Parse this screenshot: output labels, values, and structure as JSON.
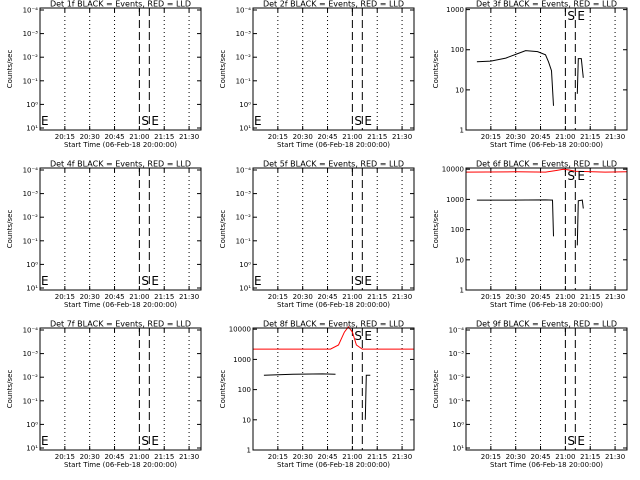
{
  "figure": {
    "start_time_label": "Start Time (06-Feb-18 20:00:00)",
    "ylabel": "Counts/sec"
  },
  "colors": {
    "events": "#000000",
    "lld": "#ff0000"
  },
  "chart_data": [
    {
      "type": "line",
      "title": "Det 1f BLACK = Events, RED = LLD",
      "scale": "log",
      "yticks": [
        "10⁻⁴",
        "10⁻³",
        "10⁻²",
        "10⁻¹",
        "10⁰",
        "10¹"
      ],
      "xticks": [
        "20:15",
        "20:30",
        "20:45",
        "21:00",
        "21:15",
        "21:30"
      ],
      "markers": [
        {
          "label": "E",
          "time": 20.02
        },
        {
          "label": "S",
          "time": 21.0
        },
        {
          "label": "E",
          "time": 21.1
        }
      ],
      "series": []
    },
    {
      "type": "line",
      "title": "Det 2f BLACK = Events, RED = LLD",
      "scale": "log",
      "yticks": [
        "10⁻⁴",
        "10⁻³",
        "10⁻²",
        "10⁻¹",
        "10⁰",
        "10¹"
      ],
      "xticks": [
        "20:15",
        "20:30",
        "20:45",
        "21:00",
        "21:15",
        "21:30"
      ],
      "markers": [
        {
          "label": "E",
          "time": 20.02
        },
        {
          "label": "S",
          "time": 21.0
        },
        {
          "label": "E",
          "time": 21.1
        }
      ],
      "series": []
    },
    {
      "type": "line",
      "title": "Det 3f BLACK = Events, RED = LLD",
      "scale": "log",
      "yticks": [
        "1000",
        "100",
        "10",
        "1"
      ],
      "xticks": [
        "20:15",
        "20:30",
        "20:45",
        "21:00",
        "21:15",
        "21:30"
      ],
      "markers": [
        {
          "label": "S",
          "time": 21.0
        },
        {
          "label": "E",
          "time": 21.1
        }
      ],
      "series": [
        {
          "color": "events",
          "segments": [
            [
              [
                20.11,
                50
              ],
              [
                20.25,
                52
              ],
              [
                20.4,
                62
              ],
              [
                20.52,
                80
              ],
              [
                20.6,
                95
              ],
              [
                20.72,
                90
              ],
              [
                20.8,
                75
              ],
              [
                20.83,
                50
              ],
              [
                20.86,
                30
              ],
              [
                20.88,
                4
              ]
            ],
            [
              [
                21.12,
                8
              ],
              [
                21.13,
                60
              ],
              [
                21.15,
                60
              ],
              [
                21.16,
                60
              ],
              [
                21.18,
                20
              ]
            ]
          ]
        }
      ]
    },
    {
      "type": "line",
      "title": "Det 4f BLACK = Events, RED = LLD",
      "scale": "log",
      "yticks": [
        "10⁻⁴",
        "10⁻³",
        "10⁻²",
        "10⁻¹",
        "10⁰",
        "10¹"
      ],
      "xticks": [
        "20:15",
        "20:30",
        "20:45",
        "21:00",
        "21:15",
        "21:30"
      ],
      "markers": [
        {
          "label": "E",
          "time": 20.02
        },
        {
          "label": "S",
          "time": 21.0
        },
        {
          "label": "E",
          "time": 21.1
        }
      ],
      "series": []
    },
    {
      "type": "line",
      "title": "Det 5f BLACK = Events, RED = LLD",
      "scale": "log",
      "yticks": [
        "10⁻⁴",
        "10⁻³",
        "10⁻²",
        "10⁻¹",
        "10⁰",
        "10¹"
      ],
      "xticks": [
        "20:15",
        "20:30",
        "20:45",
        "21:00",
        "21:15",
        "21:30"
      ],
      "markers": [
        {
          "label": "E",
          "time": 20.02
        },
        {
          "label": "S",
          "time": 21.0
        },
        {
          "label": "E",
          "time": 21.1
        }
      ],
      "series": []
    },
    {
      "type": "line",
      "title": "Det 6f BLACK = Events, RED = LLD",
      "scale": "log",
      "yticks": [
        "10000",
        "1000",
        "100",
        "10",
        "1"
      ],
      "xticks": [
        "20:15",
        "20:30",
        "20:45",
        "21:00",
        "21:15",
        "21:30"
      ],
      "markers": [
        {
          "label": "S",
          "time": 21.0
        },
        {
          "label": "E",
          "time": 21.1
        }
      ],
      "series": [
        {
          "color": "lld",
          "segments": [
            [
              [
                20.0,
                8000
              ],
              [
                20.5,
                8200
              ],
              [
                20.8,
                8000
              ],
              [
                20.9,
                9000
              ],
              [
                20.98,
                10000
              ],
              [
                21.03,
                9500
              ],
              [
                21.1,
                8500
              ],
              [
                21.4,
                8000
              ],
              [
                21.62,
                8200
              ]
            ]
          ]
        },
        {
          "color": "events",
          "segments": [
            [
              [
                20.11,
                950
              ],
              [
                20.4,
                950
              ],
              [
                20.8,
                960
              ],
              [
                20.87,
                950
              ],
              [
                20.88,
                60
              ]
            ],
            [
              [
                21.12,
                30
              ],
              [
                21.13,
                900
              ],
              [
                21.17,
                950
              ],
              [
                21.18,
                500
              ]
            ]
          ]
        }
      ]
    },
    {
      "type": "line",
      "title": "Det 7f BLACK = Events, RED = LLD",
      "scale": "log",
      "yticks": [
        "10⁻⁴",
        "10⁻³",
        "10⁻²",
        "10⁻¹",
        "10⁰",
        "10¹"
      ],
      "xticks": [
        "20:15",
        "20:30",
        "20:45",
        "21:00",
        "21:15",
        "21:30"
      ],
      "markers": [
        {
          "label": "E",
          "time": 20.02
        },
        {
          "label": "S",
          "time": 21.0
        },
        {
          "label": "E",
          "time": 21.1
        }
      ],
      "series": []
    },
    {
      "type": "line",
      "title": "Det 8f BLACK = Events, RED = LLD",
      "scale": "log",
      "yticks": [
        "10000",
        "1000",
        "100",
        "10",
        "1"
      ],
      "xticks": [
        "20:15",
        "20:30",
        "20:45",
        "21:00",
        "21:15",
        "21:30"
      ],
      "markers": [
        {
          "label": "S",
          "time": 21.0
        },
        {
          "label": "E",
          "time": 21.1
        }
      ],
      "series": [
        {
          "color": "lld",
          "segments": [
            [
              [
                20.0,
                2200
              ],
              [
                20.78,
                2200
              ],
              [
                20.86,
                3000
              ],
              [
                20.92,
                8000
              ],
              [
                20.96,
                12000
              ],
              [
                21.0,
                8000
              ],
              [
                21.04,
                3000
              ],
              [
                21.1,
                2200
              ],
              [
                21.62,
                2200
              ]
            ]
          ]
        },
        {
          "color": "events",
          "segments": [
            [
              [
                20.11,
                300
              ],
              [
                20.4,
                320
              ],
              [
                20.7,
                330
              ],
              [
                20.83,
                320
              ]
            ],
            [
              [
                21.13,
                10
              ],
              [
                21.14,
                300
              ],
              [
                21.18,
                300
              ]
            ]
          ]
        }
      ]
    },
    {
      "type": "line",
      "title": "Det 9f BLACK = Events, RED = LLD",
      "scale": "log",
      "yticks": [
        "10⁻⁴",
        "10⁻³",
        "10⁻²",
        "10⁻¹",
        "10⁰",
        "10¹"
      ],
      "xticks": [
        "20:15",
        "20:30",
        "20:45",
        "21:00",
        "21:15",
        "21:30"
      ],
      "markers": [
        {
          "label": "S",
          "time": 21.0
        },
        {
          "label": "E",
          "time": 21.1
        }
      ],
      "series": []
    }
  ]
}
